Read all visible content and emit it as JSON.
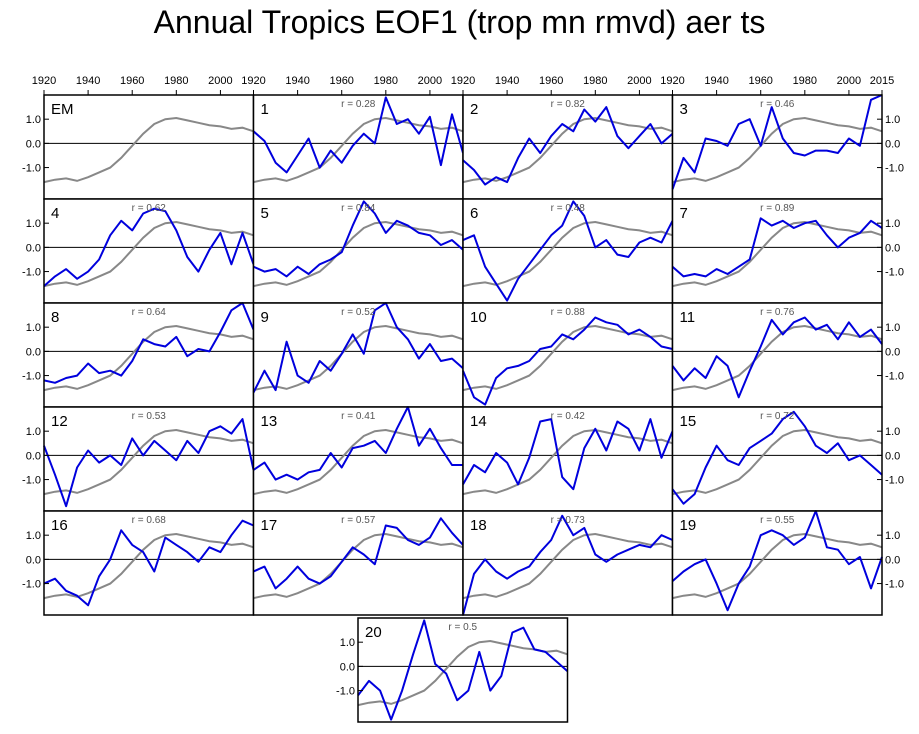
{
  "title": "Annual Tropics EOF1 (trop mn rmvd) aer ts",
  "chart_data": {
    "type": "line",
    "xlim": [
      1920,
      2015
    ],
    "ylim": [
      -2.3,
      2.0
    ],
    "x_tick_labels": [
      "1920",
      "1940",
      "1960",
      "1980",
      "2000",
      "2015"
    ],
    "x_tick_values": [
      1920,
      1940,
      1960,
      1980,
      2000,
      2015
    ],
    "y_tick_labels": [
      "1.0",
      "0.0",
      "-1.0"
    ],
    "y_tick_values": [
      1.0,
      0.0,
      -1.0
    ],
    "colors": {
      "ensemble_mean": "#888888",
      "member": "#0000dd",
      "zero_line": "#000000"
    },
    "ensemble_mean": {
      "label": "EM",
      "x": [
        1920,
        1925,
        1930,
        1935,
        1940,
        1945,
        1950,
        1955,
        1960,
        1965,
        1970,
        1975,
        1980,
        1985,
        1990,
        1995,
        2000,
        2005,
        2010,
        2015
      ],
      "y": [
        -1.6,
        -1.5,
        -1.45,
        -1.55,
        -1.4,
        -1.2,
        -1.0,
        -0.6,
        -0.1,
        0.4,
        0.8,
        1.0,
        1.05,
        0.95,
        0.85,
        0.75,
        0.7,
        0.6,
        0.65,
        0.5
      ]
    },
    "members": [
      {
        "label": "1",
        "r": "r = 0.28",
        "y": [
          0.5,
          0.1,
          -0.8,
          -1.2,
          -0.5,
          0.2,
          -1.0,
          -0.3,
          -0.8,
          -0.1,
          0.4,
          0.0,
          1.9,
          0.8,
          1.0,
          0.4,
          1.1,
          -0.9,
          1.2,
          -0.4
        ]
      },
      {
        "label": "2",
        "r": "r = 0.82",
        "y": [
          -0.7,
          -1.1,
          -1.7,
          -1.4,
          -1.6,
          -0.6,
          0.2,
          -0.4,
          0.3,
          0.8,
          0.5,
          1.4,
          0.9,
          1.5,
          0.3,
          -0.2,
          0.3,
          0.8,
          0.0,
          0.4
        ]
      },
      {
        "label": "3",
        "r": "r = 0.46",
        "y": [
          -1.9,
          -0.6,
          -1.2,
          0.2,
          0.1,
          -0.1,
          0.8,
          1.0,
          -0.1,
          1.5,
          0.2,
          -0.4,
          -0.5,
          -0.3,
          -0.3,
          -0.4,
          0.2,
          -0.1,
          1.8,
          2.0
        ]
      },
      {
        "label": "4",
        "r": "r = 0.62",
        "y": [
          -1.6,
          -1.2,
          -0.9,
          -1.3,
          -1.0,
          -0.5,
          0.5,
          1.1,
          0.7,
          1.4,
          1.6,
          1.5,
          0.7,
          -0.4,
          -1.0,
          -0.1,
          0.6,
          -0.7,
          0.6,
          -0.7
        ]
      },
      {
        "label": "5",
        "r": "r = 0.84",
        "y": [
          -0.8,
          -1.0,
          -0.9,
          -1.2,
          -0.8,
          -1.1,
          -0.7,
          -0.5,
          -0.2,
          0.9,
          1.9,
          1.4,
          0.6,
          1.1,
          0.9,
          0.6,
          0.5,
          0.1,
          0.3,
          -0.1
        ]
      },
      {
        "label": "6",
        "r": "r = 0.48",
        "y": [
          0.3,
          0.5,
          -0.8,
          -1.5,
          -2.2,
          -1.3,
          -0.7,
          -0.1,
          0.5,
          0.9,
          1.9,
          1.3,
          0.0,
          0.3,
          -0.3,
          -0.4,
          0.2,
          0.4,
          0.2,
          1.1
        ]
      },
      {
        "label": "7",
        "r": "r = 0.89",
        "y": [
          -0.8,
          -1.2,
          -1.1,
          -1.2,
          -0.9,
          -1.1,
          -0.8,
          -0.5,
          1.2,
          0.9,
          1.1,
          0.8,
          1.0,
          1.1,
          0.5,
          0.0,
          0.4,
          0.6,
          1.1,
          0.8
        ]
      },
      {
        "label": "8",
        "r": "r = 0.64",
        "y": [
          -1.2,
          -1.3,
          -1.1,
          -1.0,
          -0.5,
          -0.9,
          -0.8,
          -1.0,
          -0.4,
          0.5,
          0.3,
          0.2,
          0.6,
          -0.2,
          0.1,
          0.0,
          0.8,
          1.7,
          2.0,
          0.9
        ]
      },
      {
        "label": "9",
        "r": "r = 0.52",
        "y": [
          -1.7,
          -0.8,
          -1.6,
          0.4,
          -1.0,
          -1.3,
          -0.4,
          -0.8,
          -0.1,
          0.7,
          -0.1,
          1.7,
          2.0,
          1.0,
          0.5,
          -0.3,
          0.3,
          -0.4,
          -0.3,
          -0.7
        ]
      },
      {
        "label": "10",
        "r": "r = 0.88",
        "y": [
          -0.8,
          -1.9,
          -2.2,
          -1.1,
          -0.7,
          -0.6,
          -0.4,
          0.1,
          0.2,
          0.7,
          0.5,
          0.9,
          1.4,
          1.2,
          1.1,
          0.7,
          0.9,
          0.6,
          0.2,
          0.1
        ]
      },
      {
        "label": "11",
        "r": "r = 0.76",
        "y": [
          -0.6,
          -1.2,
          -0.7,
          -1.1,
          -0.2,
          -0.6,
          -1.9,
          -0.8,
          0.2,
          1.3,
          0.7,
          1.2,
          1.4,
          0.9,
          1.1,
          0.5,
          1.2,
          0.6,
          0.9,
          0.3
        ]
      },
      {
        "label": "12",
        "r": "r = 0.53",
        "y": [
          0.4,
          -0.8,
          -2.1,
          -0.5,
          0.2,
          -0.3,
          0.0,
          -0.4,
          0.7,
          0.0,
          0.6,
          0.2,
          -0.2,
          0.6,
          0.1,
          1.0,
          1.2,
          0.9,
          1.5,
          -0.6
        ]
      },
      {
        "label": "13",
        "r": "r = 0.41",
        "y": [
          -0.6,
          -0.3,
          -1.0,
          -0.8,
          -1.0,
          -0.7,
          -0.6,
          0.1,
          -0.5,
          0.3,
          0.4,
          0.6,
          0.1,
          1.1,
          2.0,
          0.4,
          1.1,
          0.3,
          -0.4,
          -0.4
        ]
      },
      {
        "label": "14",
        "r": "r = 0.42",
        "y": [
          -1.2,
          -0.4,
          -0.7,
          0.1,
          -0.3,
          -1.2,
          -0.1,
          1.4,
          1.5,
          -0.9,
          -1.4,
          0.3,
          1.1,
          0.2,
          1.4,
          1.1,
          0.2,
          1.5,
          -0.1,
          1.0
        ]
      },
      {
        "label": "15",
        "r": "r = 0.72",
        "y": [
          -1.4,
          -2.0,
          -1.6,
          -0.5,
          0.4,
          -0.2,
          -0.4,
          0.3,
          0.6,
          0.9,
          1.5,
          1.8,
          1.2,
          0.4,
          0.1,
          0.5,
          -0.2,
          0.0,
          -0.4,
          -0.8
        ]
      },
      {
        "label": "16",
        "r": "r = 0.68",
        "y": [
          -1.0,
          -0.8,
          -1.3,
          -1.5,
          -1.9,
          -0.7,
          0.0,
          1.2,
          0.6,
          0.3,
          -0.5,
          0.9,
          0.6,
          0.3,
          -0.1,
          0.5,
          0.3,
          1.0,
          1.6,
          1.4
        ]
      },
      {
        "label": "17",
        "r": "r = 0.57",
        "y": [
          -0.5,
          -0.3,
          -1.2,
          -0.8,
          -0.3,
          -0.8,
          -1.0,
          -0.7,
          -0.1,
          0.5,
          0.2,
          -0.2,
          1.4,
          1.3,
          0.8,
          0.6,
          0.9,
          1.7,
          1.1,
          0.6
        ]
      },
      {
        "label": "18",
        "r": "r = 0.73",
        "y": [
          -2.3,
          -0.6,
          0.0,
          -0.5,
          -0.8,
          -0.5,
          -0.3,
          0.3,
          0.8,
          1.8,
          1.0,
          1.3,
          0.2,
          -0.1,
          0.2,
          0.4,
          0.6,
          0.5,
          1.0,
          0.8
        ]
      },
      {
        "label": "19",
        "r": "r = 0.55",
        "y": [
          -0.9,
          -0.5,
          -0.2,
          0.0,
          -1.0,
          -2.1,
          -1.0,
          -0.3,
          1.0,
          1.2,
          1.0,
          0.6,
          0.9,
          2.0,
          0.5,
          0.4,
          -0.2,
          0.1,
          -1.2,
          0.1
        ]
      },
      {
        "label": "20",
        "r": "r = 0.5",
        "y": [
          -1.2,
          -0.6,
          -1.0,
          -2.2,
          -1.0,
          0.5,
          1.9,
          0.1,
          -0.3,
          -1.4,
          -1.0,
          0.6,
          -1.0,
          -0.4,
          1.4,
          1.6,
          0.7,
          0.6,
          0.2,
          -0.2
        ]
      }
    ]
  }
}
